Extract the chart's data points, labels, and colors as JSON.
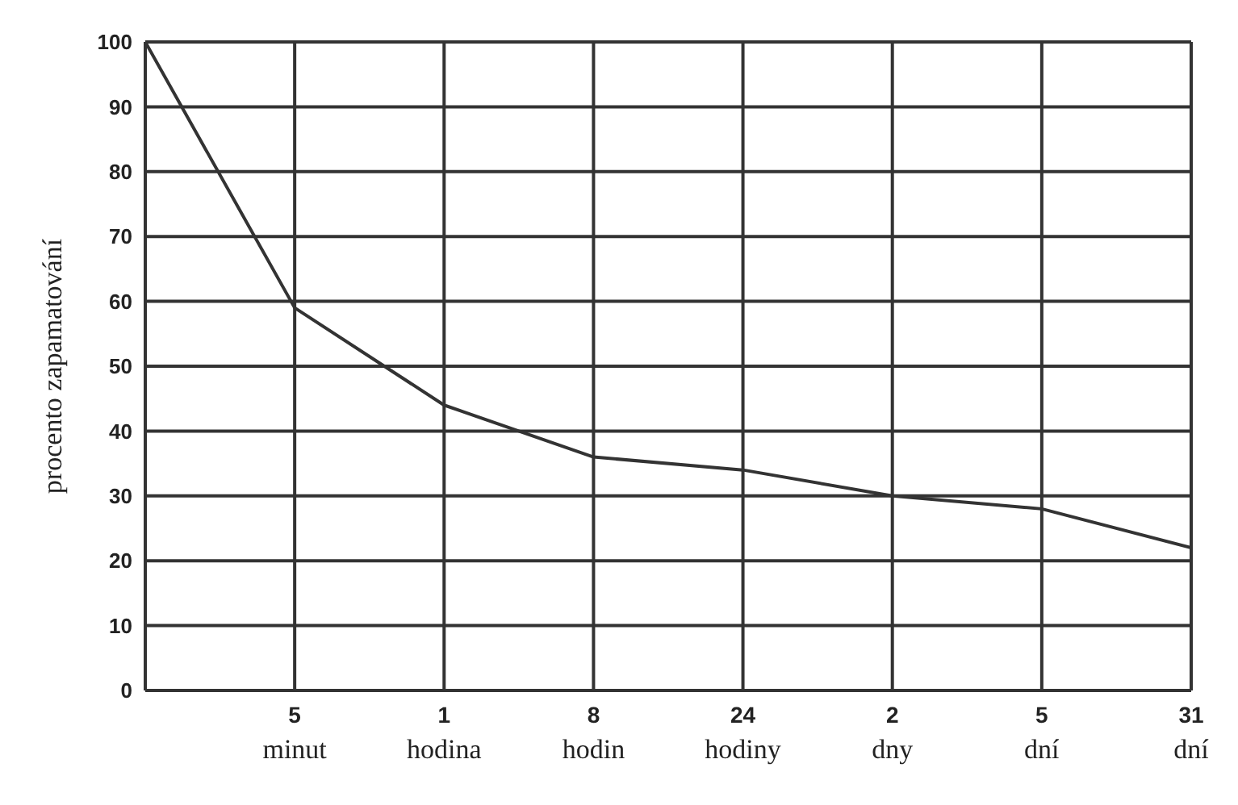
{
  "chart_data": {
    "type": "line",
    "ylabel": "procento zapamatování",
    "categories": [
      null,
      "5 minut",
      "1 hodina",
      "8 hodin",
      "24 hodiny",
      "2 dny",
      "5 dní",
      "31 dní"
    ],
    "series": [
      {
        "color": "#333333",
        "values": [
          100,
          59,
          44,
          36,
          34,
          30,
          28,
          22
        ]
      }
    ],
    "ylim": [
      0,
      100
    ],
    "yticks": [
      0,
      10,
      20,
      30,
      40,
      50,
      60,
      70,
      80,
      90,
      100
    ],
    "grid": true,
    "marker": "none",
    "line_style": "solid"
  }
}
